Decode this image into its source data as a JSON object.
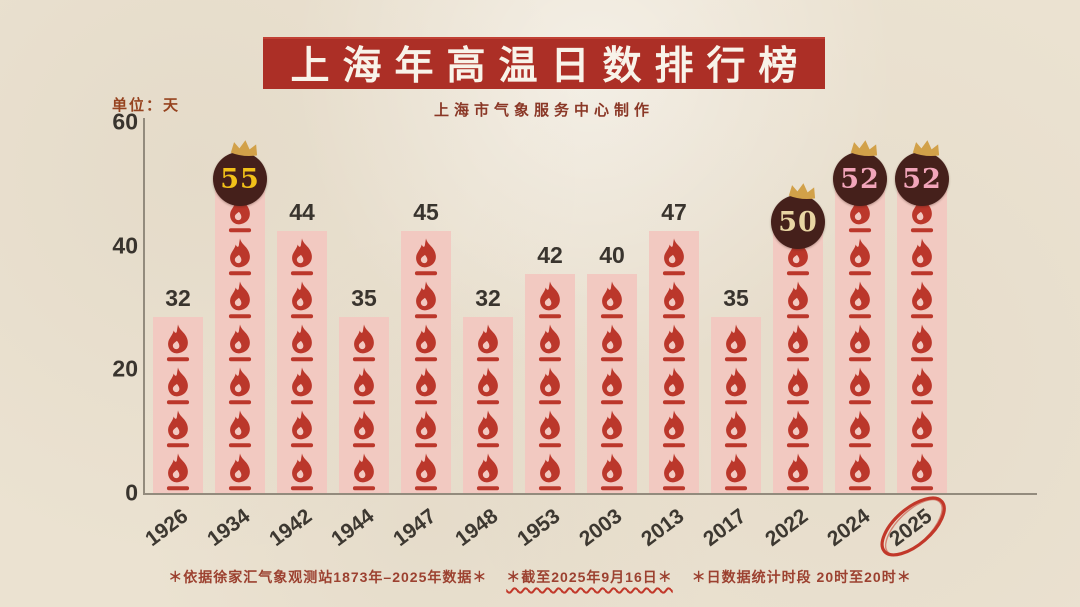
{
  "header": {
    "title": "上海年高温日数排行榜",
    "credit": "上海市气象服务中心制作"
  },
  "chart_data": {
    "type": "bar",
    "title": "上海年高温日数排行榜",
    "subtitle": "上海市气象服务中心制作",
    "unit_label": "单位：天",
    "xlabel": "",
    "ylabel": "天",
    "ylim": [
      0,
      60
    ],
    "yticks": [
      60,
      40,
      20,
      0
    ],
    "grid": false,
    "legend": "none",
    "categories": [
      "1926",
      "1934",
      "1942",
      "1944",
      "1947",
      "1948",
      "1953",
      "2003",
      "2013",
      "2017",
      "2022",
      "2024",
      "2025"
    ],
    "values": [
      32,
      55,
      44,
      35,
      45,
      32,
      42,
      40,
      47,
      35,
      50,
      52,
      52
    ],
    "bars": [
      {
        "year": "1926",
        "value": 32,
        "flames": 4,
        "badge": null,
        "circled": false
      },
      {
        "year": "1934",
        "value": 55,
        "flames": 7,
        "badge": {
          "text": "55",
          "text_color": "#f2c119",
          "crown": true
        },
        "circled": false
      },
      {
        "year": "1942",
        "value": 44,
        "flames": 6,
        "badge": null,
        "circled": false
      },
      {
        "year": "1944",
        "value": 35,
        "flames": 4,
        "badge": null,
        "circled": false
      },
      {
        "year": "1947",
        "value": 45,
        "flames": 6,
        "badge": null,
        "circled": false
      },
      {
        "year": "1948",
        "value": 32,
        "flames": 4,
        "badge": null,
        "circled": false
      },
      {
        "year": "1953",
        "value": 42,
        "flames": 5,
        "badge": null,
        "circled": false
      },
      {
        "year": "2003",
        "value": 40,
        "flames": 5,
        "badge": null,
        "circled": false
      },
      {
        "year": "2013",
        "value": 47,
        "flames": 6,
        "badge": null,
        "circled": false
      },
      {
        "year": "2017",
        "value": 35,
        "flames": 4,
        "badge": null,
        "circled": false
      },
      {
        "year": "2022",
        "value": 50,
        "flames": 6,
        "badge": {
          "text": "50",
          "text_color": "#e9d5a3",
          "crown": true
        },
        "circled": false
      },
      {
        "year": "2024",
        "value": 52,
        "flames": 7,
        "badge": {
          "text": "52",
          "text_color": "#f2a5ba",
          "crown": true
        },
        "circled": false
      },
      {
        "year": "2025",
        "value": 52,
        "flames": 7,
        "badge": {
          "text": "52",
          "text_color": "#f2a5ba",
          "crown": true
        },
        "circled": true
      }
    ],
    "annotations": [
      "2025年份被红笔圈出",
      "截至2025年9月16日下有红色波浪线"
    ]
  },
  "footnotes": {
    "items": [
      "＊依据徐家汇气象观测站1873年–2025年数据＊",
      "＊截至2025年9月16日＊",
      "＊日数据统计时段 20时至20时＊"
    ]
  },
  "colors": {
    "paper": "#ebe2d1",
    "banner_red": "#ac2f26",
    "title_text": "#f8f3e9",
    "subtitle_red": "#8a3726",
    "unit_red": "#96431f",
    "flame_red": "#bb372b",
    "bar_pink": "#f2c9c1",
    "badge_bg": "#45201b",
    "crown_gold": "#d2a149",
    "axis_text": "#39342e",
    "axis_line": "#938b7d",
    "circle_red": "#c2382a",
    "footnote_red": "#9c4130"
  }
}
